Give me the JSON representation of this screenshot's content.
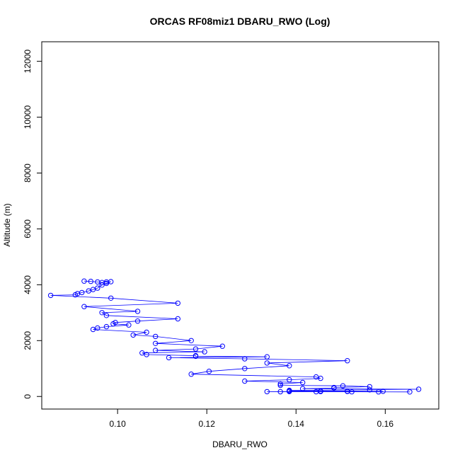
{
  "chart_data": {
    "type": "line",
    "title": "ORCAS RF08miz1 DBARU_RWO (Log)",
    "xlabel": "DBARU_RWO",
    "ylabel": "Altitude (m)",
    "xlim": [
      0.083,
      0.172
    ],
    "ylim": [
      -450,
      12700
    ],
    "xticks": [
      0.1,
      0.12,
      0.14,
      0.16
    ],
    "xtick_labels": [
      "0.10",
      "0.12",
      "0.14",
      "0.16"
    ],
    "yticks": [
      0,
      2000,
      4000,
      6000,
      8000,
      10000,
      12000
    ],
    "ytick_labels": [
      "0",
      "2000",
      "4000",
      "6000",
      "8000",
      "10000",
      "12000"
    ],
    "grid": false,
    "legend": "none",
    "series_color": "#0000ff",
    "markers": "open-circle",
    "series": [
      {
        "x": [
          0.0925,
          0.094,
          0.0955,
          0.0965,
          0.0975,
          0.0985,
          0.0975,
          0.0965,
          0.0955,
          0.0945,
          0.0935,
          0.092,
          0.091,
          0.0905,
          0.085,
          0.0985,
          0.1135,
          0.0925,
          0.1045,
          0.0965,
          0.0975,
          0.1135,
          0.1045,
          0.0995,
          0.099,
          0.1025,
          0.0975,
          0.0955,
          0.0945,
          0.1065,
          0.1035,
          0.1085,
          0.1165,
          0.1085,
          0.1235,
          0.1175,
          0.1085,
          0.1195,
          0.1055,
          0.1065,
          0.1175,
          0.1175,
          0.1335,
          0.1115,
          0.1285,
          0.1515,
          0.1335,
          0.1385,
          0.1285,
          0.1205,
          0.1165,
          0.1445,
          0.1455,
          0.1385,
          0.1285,
          0.1415,
          0.1365,
          0.1365,
          0.1505,
          0.1565,
          0.1485,
          0.1485,
          0.1415,
          0.1675,
          0.1565,
          0.1385,
          0.1385,
          0.1455,
          0.1515,
          0.1595,
          0.1515,
          0.1455,
          0.1385,
          0.1335,
          0.1365,
          0.1445,
          0.1525,
          0.1585,
          0.1655
        ],
        "y": [
          4130,
          4120,
          4100,
          4080,
          4100,
          4110,
          4050,
          3990,
          3880,
          3830,
          3780,
          3720,
          3680,
          3640,
          3620,
          3520,
          3340,
          3220,
          3050,
          3000,
          2900,
          2780,
          2700,
          2650,
          2600,
          2560,
          2500,
          2450,
          2400,
          2300,
          2200,
          2150,
          2000,
          1900,
          1800,
          1700,
          1650,
          1600,
          1560,
          1500,
          1460,
          1440,
          1420,
          1390,
          1350,
          1280,
          1200,
          1100,
          1000,
          900,
          800,
          700,
          650,
          600,
          550,
          500,
          450,
          400,
          380,
          350,
          320,
          300,
          280,
          260,
          240,
          220,
          200,
          195,
          190,
          185,
          180,
          178,
          176,
          174,
          172,
          170,
          168,
          166,
          164
        ]
      }
    ]
  }
}
